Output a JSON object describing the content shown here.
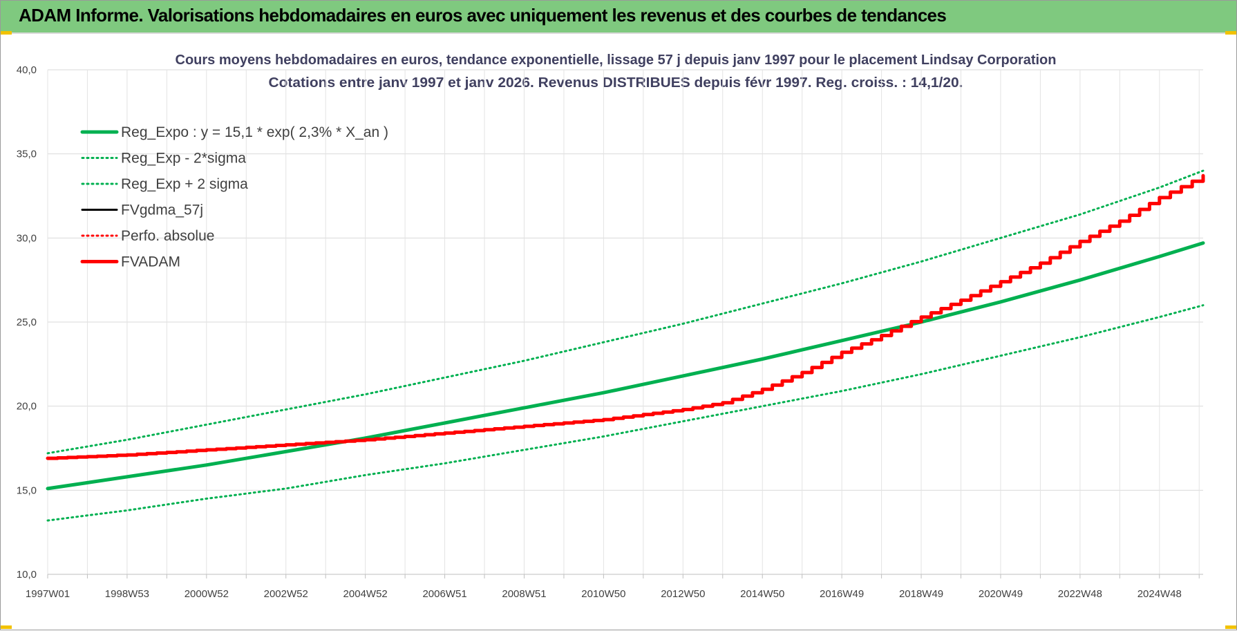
{
  "banner": {
    "title": "ADAM Informe. Valorisations hebdomadaires en euros avec uniquement les revenus et des courbes de tendances"
  },
  "colors": {
    "banner_bg": "#7fc97f",
    "trend_green": "#00b050",
    "adam_red": "#ff0000",
    "gdma_black": "#000000"
  },
  "chart_data": {
    "type": "line",
    "title_lines": [
      "Cours moyens hebdomadaires en euros, tendance exponentielle, lissage 57 j depuis janv 1997 pour le placement Lindsay Corporation",
      "Cotations entre janv 1997 et janv 2026. Revenus DISTRIBUES depuis févr 1997. Reg. croiss. : 14,1/20."
    ],
    "x_unit": "year",
    "xlim": [
      1997.0,
      2026.1
    ],
    "ylim": [
      10,
      40
    ],
    "y_ticks": [
      "10,0",
      "15,0",
      "20,0",
      "25,0",
      "30,0",
      "35,0",
      "40,0"
    ],
    "x_ticks": [
      {
        "label": "1997W01",
        "x": 1997.0
      },
      {
        "label": "1998W53",
        "x": 1999.0
      },
      {
        "label": "2000W52",
        "x": 2001.0
      },
      {
        "label": "2002W52",
        "x": 2003.0
      },
      {
        "label": "2004W52",
        "x": 2005.0
      },
      {
        "label": "2006W51",
        "x": 2007.0
      },
      {
        "label": "2008W51",
        "x": 2009.0
      },
      {
        "label": "2010W50",
        "x": 2011.0
      },
      {
        "label": "2012W50",
        "x": 2013.0
      },
      {
        "label": "2014W50",
        "x": 2015.0
      },
      {
        "label": "2016W49",
        "x": 2017.0
      },
      {
        "label": "2018W49",
        "x": 2019.0
      },
      {
        "label": "2020W49",
        "x": 2021.0
      },
      {
        "label": "2022W48",
        "x": 2023.0
      },
      {
        "label": "2024W48",
        "x": 2025.0
      }
    ],
    "grid": true,
    "legend_position": "top-left",
    "series": [
      {
        "name": "Reg_Expo : y = 15,1 * exp( 2,3% *  X_an )",
        "style": "solid-thick",
        "color": "#00b050",
        "x": [
          1997,
          1999,
          2001,
          2003,
          2005,
          2007,
          2009,
          2011,
          2013,
          2015,
          2017,
          2019,
          2021,
          2023,
          2025,
          2026.1
        ],
        "y": [
          15.1,
          15.8,
          16.5,
          17.3,
          18.1,
          19.0,
          19.9,
          20.8,
          21.8,
          22.8,
          23.9,
          25.0,
          26.2,
          27.5,
          28.9,
          29.7
        ]
      },
      {
        "name": "Reg_Exp - 2*sigma",
        "style": "dotted",
        "color": "#00b050",
        "x": [
          1997,
          1999,
          2001,
          2003,
          2005,
          2007,
          2009,
          2011,
          2013,
          2015,
          2017,
          2019,
          2021,
          2023,
          2025,
          2026.1
        ],
        "y": [
          13.2,
          13.8,
          14.5,
          15.1,
          15.9,
          16.6,
          17.4,
          18.2,
          19.1,
          20.0,
          20.9,
          21.9,
          23.0,
          24.1,
          25.3,
          26.0
        ]
      },
      {
        "name": "Reg_Exp + 2 sigma",
        "style": "dotted",
        "color": "#00b050",
        "x": [
          1997,
          1999,
          2001,
          2003,
          2005,
          2007,
          2009,
          2011,
          2013,
          2015,
          2017,
          2019,
          2021,
          2023,
          2025,
          2026.1
        ],
        "y": [
          17.2,
          18.0,
          18.9,
          19.8,
          20.7,
          21.7,
          22.7,
          23.8,
          24.9,
          26.1,
          27.3,
          28.6,
          30.0,
          31.4,
          33.0,
          34.0
        ]
      },
      {
        "name": "FVgdma_57j",
        "style": "solid",
        "color": "#000000",
        "x": [],
        "y": []
      },
      {
        "name": "Perfo. absolue",
        "style": "dotted",
        "color": "#ff0000",
        "x": [],
        "y": []
      },
      {
        "name": "FVADAM",
        "style": "solid-thick",
        "color": "#ff0000",
        "x": [
          1997,
          1999,
          2001,
          2003,
          2005,
          2007,
          2009,
          2011,
          2013,
          2014,
          2015,
          2016,
          2017,
          2018,
          2019,
          2020,
          2021,
          2022,
          2023,
          2024,
          2025,
          2026.1
        ],
        "y": [
          16.9,
          17.1,
          17.4,
          17.7,
          18.0,
          18.4,
          18.8,
          19.2,
          19.8,
          20.2,
          21.0,
          22.0,
          23.2,
          24.2,
          25.3,
          26.3,
          27.4,
          28.5,
          29.8,
          31.0,
          32.4,
          33.7
        ]
      }
    ]
  }
}
